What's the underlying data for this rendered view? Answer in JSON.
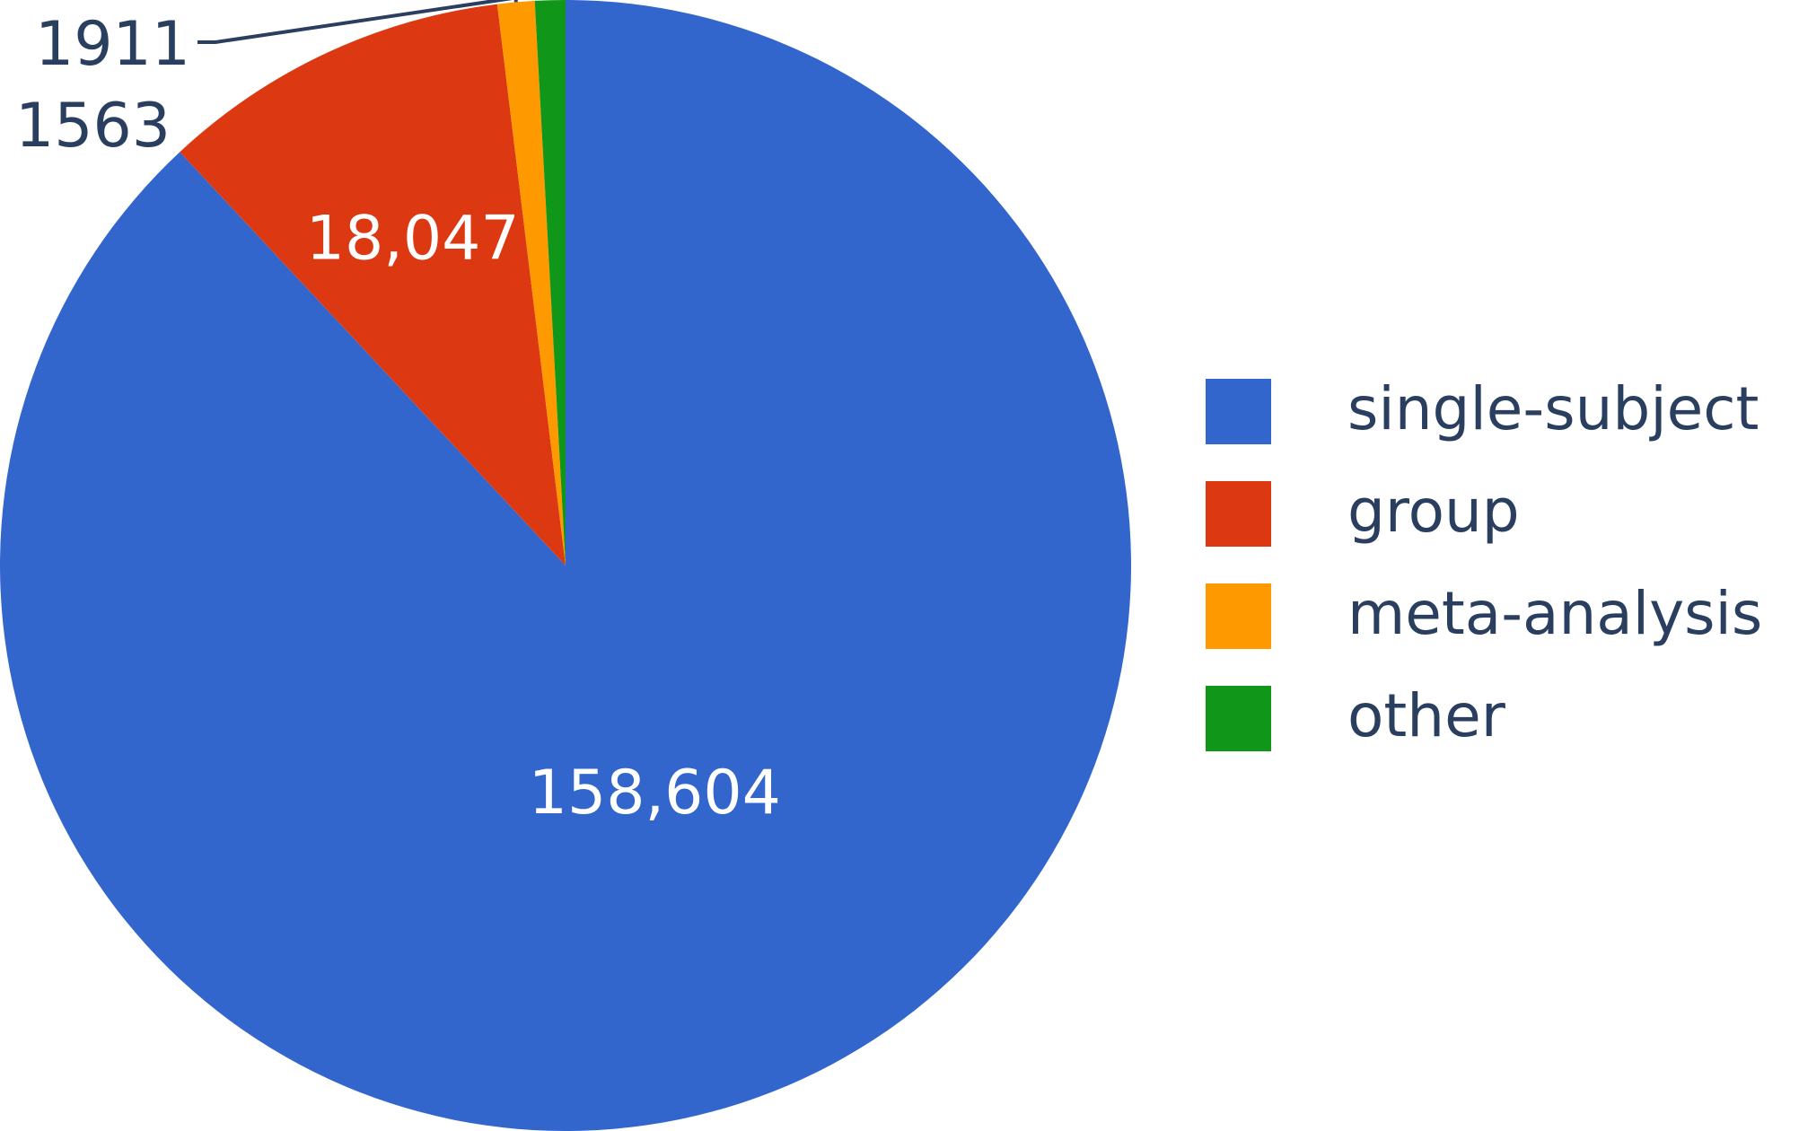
{
  "chart_data": {
    "type": "pie",
    "categories": [
      "single-subject",
      "group",
      "meta-analysis",
      "other"
    ],
    "values": [
      158604,
      18047,
      1911,
      1563
    ],
    "value_labels": [
      "158,604",
      "18,047",
      "1911",
      "1563"
    ],
    "colors": [
      "#3366cc",
      "#dc3912",
      "#ff9900",
      "#109618"
    ],
    "legend": {
      "entries": [
        "single-subject",
        "group",
        "meta-analysis",
        "other"
      ],
      "position": "right"
    },
    "direction": "clockwise",
    "start": "top",
    "title": ""
  },
  "text_color": "#2a3f5f"
}
